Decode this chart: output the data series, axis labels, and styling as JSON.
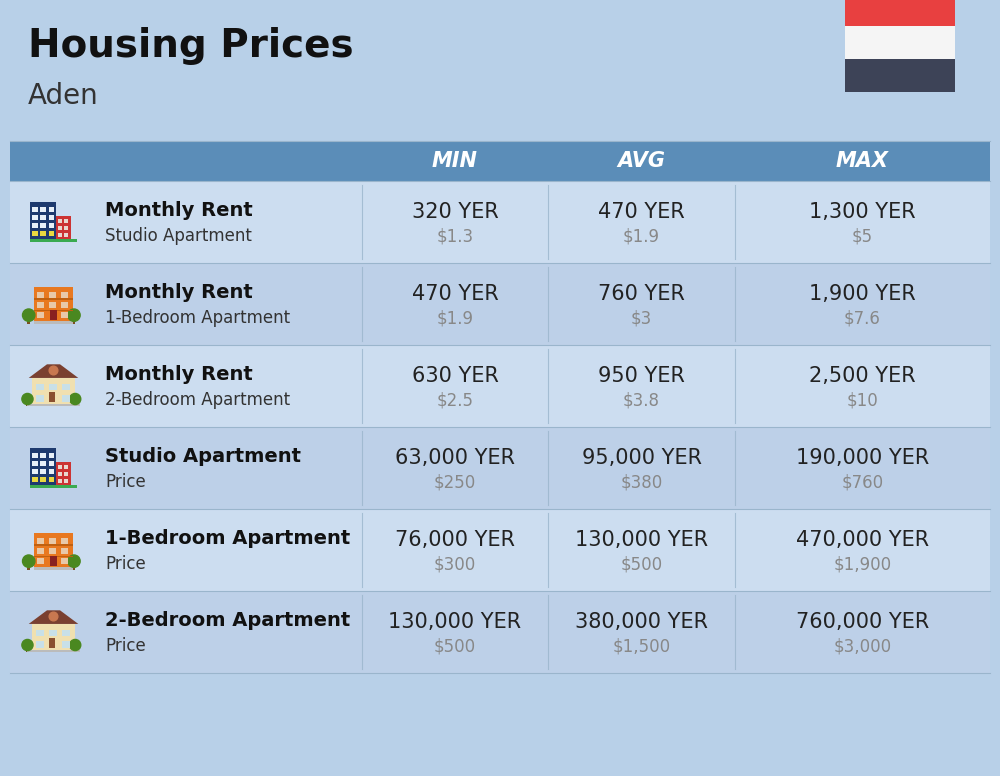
{
  "title": "Housing Prices",
  "subtitle": "Aden",
  "background_color": "#b8d0e8",
  "header_color": "#5b8db8",
  "row_colors": [
    "#ccddf0",
    "#bdd0e8"
  ],
  "col_headers": [
    "MIN",
    "AVG",
    "MAX"
  ],
  "rows": [
    {
      "label_bold": "Monthly Rent",
      "label_sub": "Studio Apartment",
      "icon_type": "blue_red_studio",
      "min_yer": "320 YER",
      "min_usd": "$1.3",
      "avg_yer": "470 YER",
      "avg_usd": "$1.9",
      "max_yer": "1,300 YER",
      "max_usd": "$5"
    },
    {
      "label_bold": "Monthly Rent",
      "label_sub": "1-Bedroom Apartment",
      "icon_type": "orange_trees",
      "min_yer": "470 YER",
      "min_usd": "$1.9",
      "avg_yer": "760 YER",
      "avg_usd": "$3",
      "max_yer": "1,900 YER",
      "max_usd": "$7.6"
    },
    {
      "label_bold": "Monthly Rent",
      "label_sub": "2-Bedroom Apartment",
      "icon_type": "beige_house",
      "min_yer": "630 YER",
      "min_usd": "$2.5",
      "avg_yer": "950 YER",
      "avg_usd": "$3.8",
      "max_yer": "2,500 YER",
      "max_usd": "$10"
    },
    {
      "label_bold": "Studio Apartment",
      "label_sub": "Price",
      "icon_type": "blue_red_studio",
      "min_yer": "63,000 YER",
      "min_usd": "$250",
      "avg_yer": "95,000 YER",
      "avg_usd": "$380",
      "max_yer": "190,000 YER",
      "max_usd": "$760"
    },
    {
      "label_bold": "1-Bedroom Apartment",
      "label_sub": "Price",
      "icon_type": "orange_trees",
      "min_yer": "76,000 YER",
      "min_usd": "$300",
      "avg_yer": "130,000 YER",
      "avg_usd": "$500",
      "max_yer": "470,000 YER",
      "max_usd": "$1,900"
    },
    {
      "label_bold": "2-Bedroom Apartment",
      "label_sub": "Price",
      "icon_type": "beige_house",
      "min_yer": "130,000 YER",
      "min_usd": "$500",
      "avg_yer": "380,000 YER",
      "avg_usd": "$1,500",
      "max_yer": "760,000 YER",
      "max_usd": "$3,000"
    }
  ],
  "flag_red": "#e84040",
  "flag_white": "#f5f5f5",
  "flag_black": "#3d4357",
  "yer_fontsize": 15,
  "usd_fontsize": 12,
  "label_bold_fontsize": 14,
  "label_sub_fontsize": 12
}
